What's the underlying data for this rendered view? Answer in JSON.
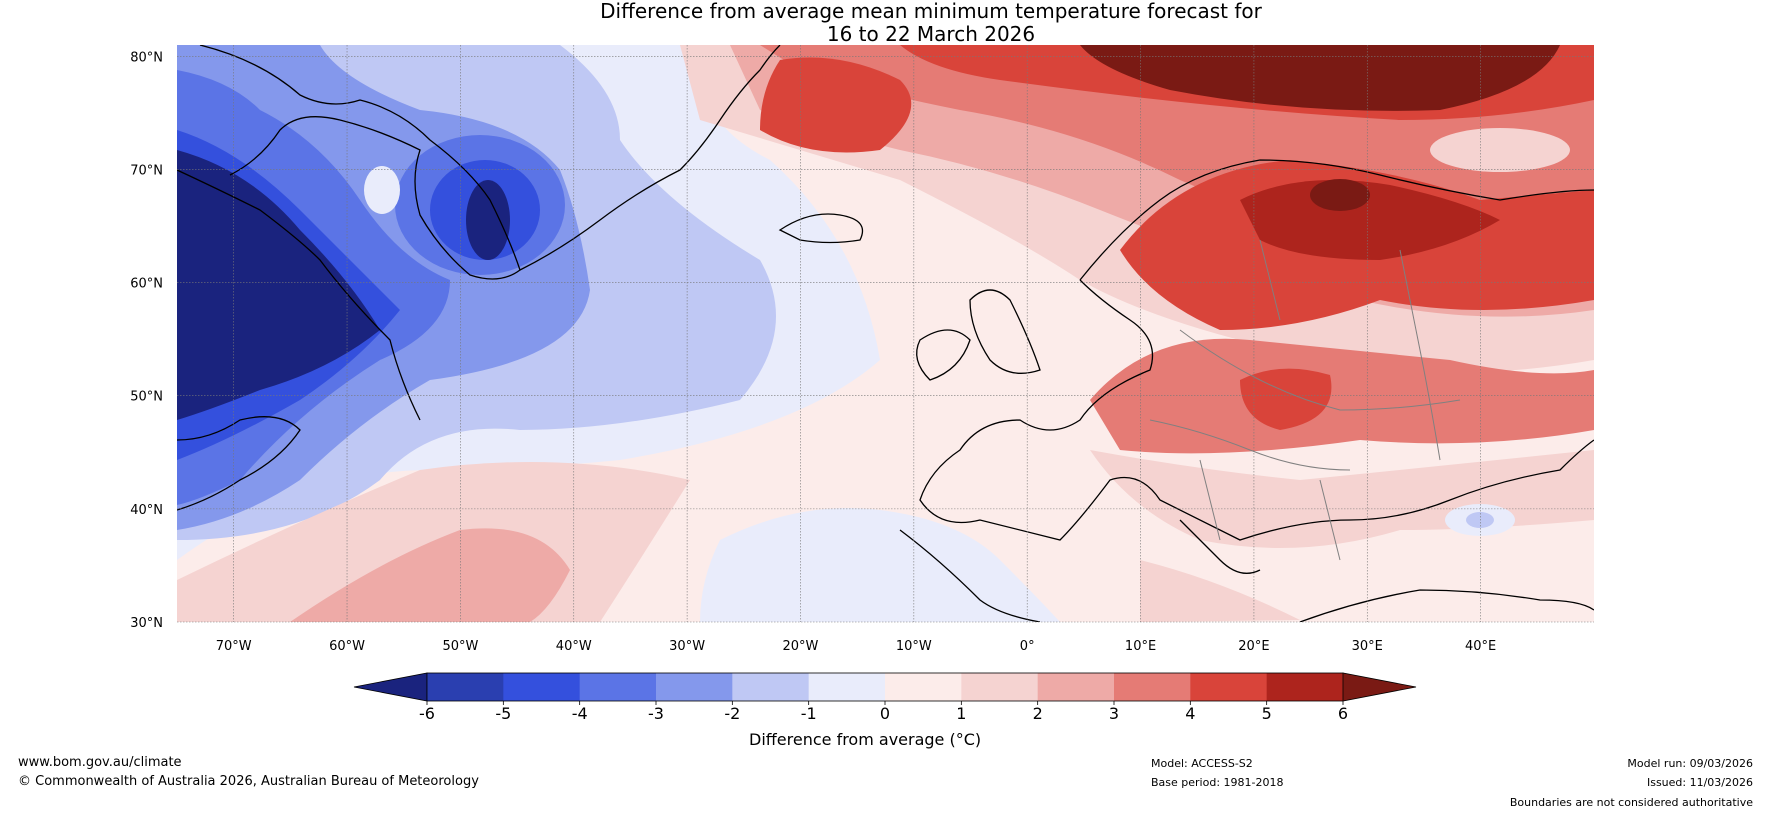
{
  "title": {
    "line1": "Difference from average mean minimum temperature forecast for",
    "line2": "16 to 22 March 2026"
  },
  "map": {
    "lat_labels": [
      "80°N",
      "70°N",
      "60°N",
      "50°N",
      "40°N",
      "30°N"
    ],
    "lon_labels": [
      "70°W",
      "60°W",
      "50°W",
      "40°W",
      "30°W",
      "20°W",
      "10°W",
      "0°",
      "10°E",
      "20°E",
      "30°E",
      "40°E"
    ],
    "lat_range": [
      30,
      81
    ],
    "lon_range": [
      -75,
      50
    ]
  },
  "colorbar": {
    "levels": [
      "-6",
      "-5",
      "-4",
      "-3",
      "-2",
      "-1",
      "0",
      "1",
      "2",
      "3",
      "4",
      "5",
      "6"
    ],
    "label": "Difference from average (°C)",
    "colors": [
      "#1a237e",
      "#2a3fb0",
      "#3450dd",
      "#5b74e6",
      "#8498ec",
      "#bfc8f4",
      "#e9ecfb",
      "#fcecea",
      "#f5d3d1",
      "#eeaaa7",
      "#e57b75",
      "#d9443a",
      "#ad241d",
      "#7a1a14"
    ]
  },
  "footer": {
    "website": "www.bom.gov.au/climate",
    "copyright": "© Commonwealth of Australia 2026, Australian Bureau of Meteorology",
    "model": "Model: ACCESS-S2",
    "base_period": "Base period: 1981-2018",
    "model_run": "Model run: 09/03/2026",
    "issued": "Issued: 11/03/2026",
    "boundaries": "Boundaries are not considered authoritative"
  }
}
